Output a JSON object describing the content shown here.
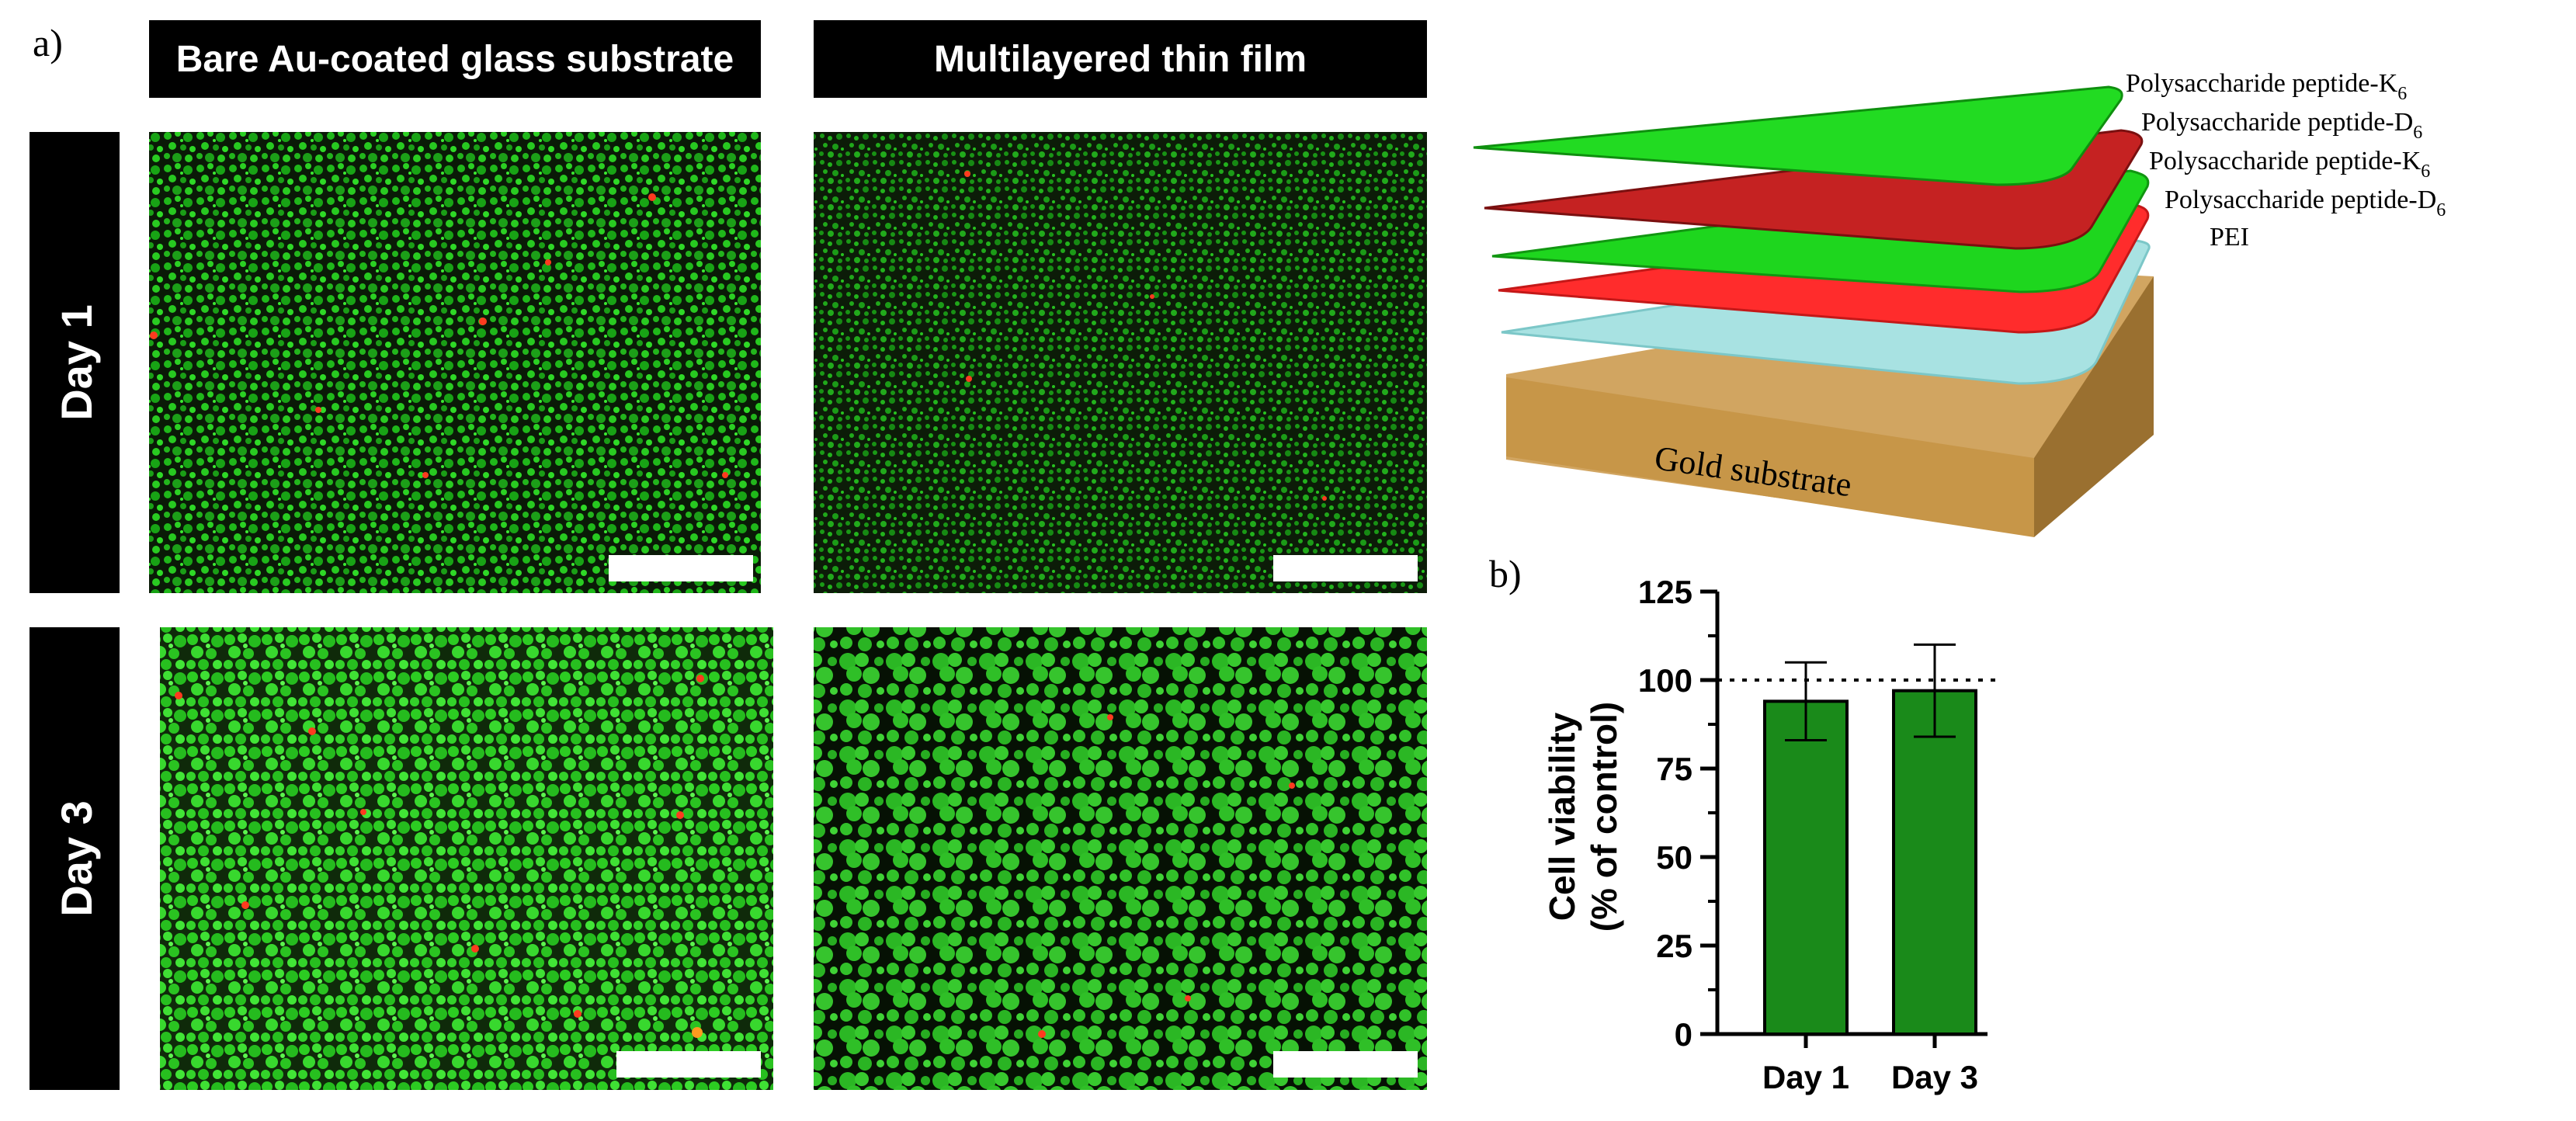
{
  "panel_a": {
    "label": "a)",
    "columns": [
      "Bare Au-coated glass substrate",
      "Multilayered thin film"
    ],
    "rows": [
      "Day 1",
      "Day 3"
    ],
    "colors": {
      "live": "#22c41c",
      "dead": "#ff3b1f",
      "background": "#0a1a07",
      "header_bg": "#000000",
      "header_text": "#ffffff"
    }
  },
  "schematic": {
    "layers": [
      {
        "name": "Polysaccharide peptide-K",
        "sub": "6",
        "color": "#1ed61e"
      },
      {
        "name": "Polysaccharide peptide-D",
        "sub": "6",
        "color": "#d42424"
      },
      {
        "name": "Polysaccharide peptide-K",
        "sub": "6",
        "color": "#1ed61e"
      },
      {
        "name": "Polysaccharide peptide-D",
        "sub": "6",
        "color": "#ff2a2a"
      },
      {
        "name": "PEI",
        "sub": "",
        "color": "#9fdfe0"
      }
    ],
    "substrate": "Gold substrate",
    "substrate_color": "#c99a52"
  },
  "panel_b": {
    "label": "b)"
  },
  "chart_data": {
    "type": "bar",
    "categories": [
      "Day 1",
      "Day 3"
    ],
    "series": [
      {
        "values": [
          94,
          97
        ],
        "error": [
          11,
          13
        ],
        "color": "#1a8a1a"
      }
    ],
    "ylabel": [
      "Cell viability",
      "(% of control)"
    ],
    "xlabel": "",
    "ylim": [
      0,
      125
    ],
    "yticks": [
      0,
      25,
      50,
      75,
      100,
      125
    ],
    "reference_line": 100,
    "grid": false
  }
}
